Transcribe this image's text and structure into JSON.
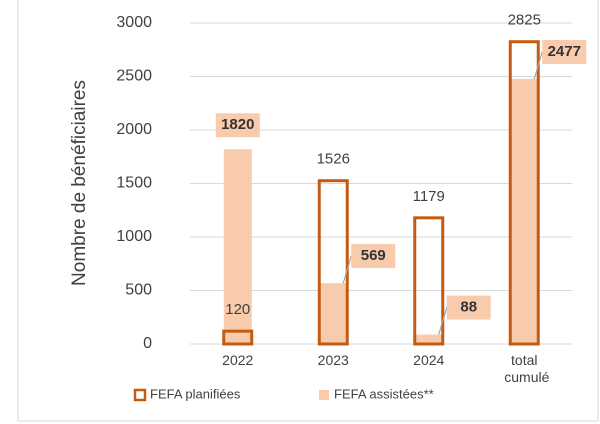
{
  "chart_data": {
    "type": "bar",
    "ylabel": "Nombre de bénéficiaires",
    "categories": [
      "2022",
      "2023",
      "2024",
      "total cumulé"
    ],
    "series": [
      {
        "name": "FEFA planifiées",
        "color": "#c55a11",
        "values": [
          120,
          1526,
          1179,
          2825
        ]
      },
      {
        "name": "FEFA assistées**",
        "color": "#f8cbad",
        "values": [
          1820,
          569,
          88,
          2477
        ]
      }
    ],
    "ylim": [
      0,
      3000
    ],
    "yticks": [
      0,
      500,
      1000,
      1500,
      2000,
      2500,
      3000
    ],
    "grid": true,
    "legend": "bottom"
  }
}
